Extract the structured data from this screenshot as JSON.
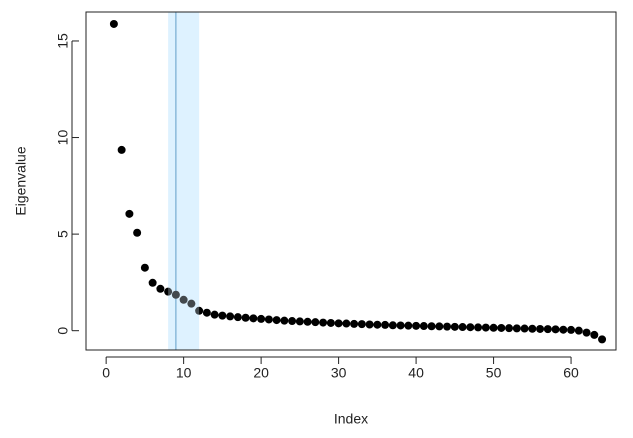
{
  "chart_data": {
    "type": "scatter",
    "x_label": "Index",
    "y_label": "Eigenvalue",
    "x": [
      1,
      2,
      3,
      4,
      5,
      6,
      7,
      8,
      9,
      10,
      11,
      12,
      13,
      14,
      15,
      16,
      17,
      18,
      19,
      20,
      21,
      22,
      23,
      24,
      25,
      26,
      27,
      28,
      29,
      30,
      31,
      32,
      33,
      34,
      35,
      36,
      37,
      38,
      39,
      40,
      41,
      42,
      43,
      44,
      45,
      46,
      47,
      48,
      49,
      50,
      51,
      52,
      53,
      54,
      55,
      56,
      57,
      58,
      59,
      60,
      61,
      62,
      63,
      64
    ],
    "values": [
      15.88,
      9.36,
      6.05,
      5.07,
      3.26,
      2.48,
      2.17,
      2.02,
      1.86,
      1.6,
      1.4,
      1.03,
      0.93,
      0.83,
      0.78,
      0.74,
      0.7,
      0.67,
      0.64,
      0.61,
      0.58,
      0.55,
      0.52,
      0.5,
      0.48,
      0.46,
      0.44,
      0.42,
      0.4,
      0.38,
      0.37,
      0.35,
      0.34,
      0.32,
      0.31,
      0.3,
      0.28,
      0.27,
      0.26,
      0.25,
      0.24,
      0.23,
      0.22,
      0.21,
      0.2,
      0.19,
      0.18,
      0.17,
      0.16,
      0.15,
      0.14,
      0.13,
      0.12,
      0.11,
      0.1,
      0.09,
      0.08,
      0.07,
      0.05,
      0.04,
      0.0,
      -0.1,
      -0.22,
      -0.45
    ],
    "color": "#000000",
    "vline": 9,
    "vline_color": "#4a8fbf",
    "band": [
      8,
      12
    ],
    "band_color": "#dff2ff",
    "xlim": [
      -2.6,
      65.8
    ],
    "ylim": [
      -1,
      16.5
    ],
    "xticks": [
      0,
      10,
      20,
      30,
      40,
      50,
      60
    ],
    "yticks": [
      0,
      5,
      10,
      15
    ]
  }
}
